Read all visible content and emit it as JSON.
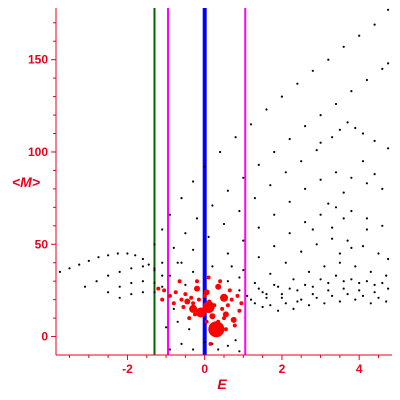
{
  "chart_data": {
    "type": "scatter",
    "title": "",
    "xlabel": "E",
    "ylabel": "<M>",
    "xlim": [
      -3.85,
      4.85
    ],
    "ylim": [
      -10,
      178
    ],
    "x_ticks": [
      -2,
      0,
      2,
      4
    ],
    "y_ticks": [
      0,
      50,
      100,
      150
    ],
    "x_tick_labels": [
      "-2",
      "0",
      "2",
      "4"
    ],
    "y_tick_labels": [
      "0",
      "50",
      "100",
      "150"
    ],
    "grid": false,
    "axis_color": "#e8001c",
    "vertical_lines": [
      {
        "x": -1.3,
        "color": "#006400"
      },
      {
        "x": -0.95,
        "color": "#ff00ff"
      },
      {
        "x": 0.0,
        "color": "#0000ff"
      },
      {
        "x": 1.05,
        "color": "#ff00ff"
      }
    ],
    "series": [
      {
        "color": "#000000",
        "values": [
          [
            -3.75,
            35
          ],
          [
            -3.5,
            37
          ],
          [
            -3.25,
            39
          ],
          [
            -3.0,
            41
          ],
          [
            -2.75,
            43
          ],
          [
            -2.5,
            44
          ],
          [
            -2.25,
            45
          ],
          [
            -2.0,
            45
          ],
          [
            -1.8,
            44
          ],
          [
            -1.6,
            42
          ],
          [
            -1.45,
            39
          ],
          [
            -1.3,
            37
          ],
          [
            -3.1,
            27
          ],
          [
            -2.8,
            30
          ],
          [
            -2.5,
            33
          ],
          [
            -2.2,
            35
          ],
          [
            -1.9,
            37
          ],
          [
            -1.6,
            38
          ],
          [
            -1.3,
            36
          ],
          [
            -1.1,
            33
          ],
          [
            -2.5,
            24
          ],
          [
            -2.2,
            27
          ],
          [
            -1.9,
            29
          ],
          [
            -1.6,
            30
          ],
          [
            -1.3,
            29
          ],
          [
            -1.1,
            27
          ],
          [
            -2.2,
            21
          ],
          [
            -1.9,
            23
          ],
          [
            -1.6,
            24
          ],
          [
            -1.3,
            24
          ],
          [
            -1.3,
            50
          ],
          [
            -1.1,
            58
          ],
          [
            -0.9,
            66
          ],
          [
            -0.6,
            75
          ],
          [
            -0.3,
            84
          ],
          [
            0.0,
            92
          ],
          [
            0.4,
            100
          ],
          [
            0.8,
            108
          ],
          [
            1.2,
            115
          ],
          [
            1.6,
            123
          ],
          [
            2.0,
            130
          ],
          [
            2.4,
            137
          ],
          [
            2.8,
            144
          ],
          [
            3.2,
            150
          ],
          [
            3.6,
            157
          ],
          [
            4.0,
            163
          ],
          [
            4.4,
            169
          ],
          [
            4.75,
            177
          ],
          [
            -1.1,
            40
          ],
          [
            -0.8,
            48
          ],
          [
            -0.5,
            56
          ],
          [
            -0.2,
            64
          ],
          [
            0.2,
            71
          ],
          [
            0.6,
            79
          ],
          [
            1.0,
            86
          ],
          [
            1.4,
            93
          ],
          [
            1.8,
            100
          ],
          [
            2.2,
            107
          ],
          [
            2.6,
            114
          ],
          [
            3.0,
            120
          ],
          [
            3.4,
            126
          ],
          [
            3.8,
            133
          ],
          [
            4.2,
            139
          ],
          [
            4.6,
            145
          ],
          [
            4.75,
            148
          ],
          [
            -0.9,
            33
          ],
          [
            -0.6,
            40
          ],
          [
            -0.3,
            47
          ],
          [
            0.1,
            54
          ],
          [
            0.5,
            61
          ],
          [
            0.9,
            68
          ],
          [
            1.3,
            75
          ],
          [
            1.7,
            82
          ],
          [
            2.1,
            89
          ],
          [
            2.5,
            95
          ],
          [
            2.9,
            101
          ],
          [
            3.3,
            108
          ],
          [
            3.5,
            112
          ],
          [
            3.7,
            116
          ],
          [
            3.9,
            113
          ],
          [
            4.1,
            110
          ],
          [
            4.4,
            106
          ],
          [
            4.75,
            102
          ],
          [
            0.2,
            38
          ],
          [
            0.6,
            45
          ],
          [
            1.0,
            52
          ],
          [
            1.4,
            59
          ],
          [
            1.8,
            66
          ],
          [
            2.2,
            73
          ],
          [
            2.6,
            80
          ],
          [
            3.0,
            85
          ],
          [
            3.4,
            89
          ],
          [
            3.8,
            86
          ],
          [
            4.2,
            83
          ],
          [
            4.6,
            80
          ],
          [
            0.6,
            30
          ],
          [
            1.0,
            36
          ],
          [
            1.4,
            43
          ],
          [
            1.8,
            49
          ],
          [
            2.2,
            56
          ],
          [
            2.6,
            62
          ],
          [
            3.0,
            66
          ],
          [
            3.4,
            70
          ],
          [
            3.8,
            68
          ],
          [
            4.2,
            64
          ],
          [
            4.6,
            60
          ],
          [
            0.9,
            25
          ],
          [
            1.3,
            29
          ],
          [
            1.7,
            34
          ],
          [
            2.1,
            40
          ],
          [
            2.5,
            46
          ],
          [
            2.9,
            50
          ],
          [
            3.3,
            53
          ],
          [
            3.7,
            52
          ],
          [
            4.1,
            49
          ],
          [
            4.5,
            45
          ],
          [
            4.75,
            42
          ],
          [
            1.1,
            22
          ],
          [
            1.5,
            24
          ],
          [
            1.9,
            27
          ],
          [
            2.3,
            31
          ],
          [
            2.7,
            35
          ],
          [
            3.1,
            38
          ],
          [
            3.5,
            40
          ],
          [
            3.9,
            38
          ],
          [
            4.3,
            35
          ],
          [
            4.7,
            33
          ],
          [
            1.2,
            20
          ],
          [
            1.6,
            21
          ],
          [
            2.0,
            23
          ],
          [
            2.4,
            25
          ],
          [
            2.8,
            27
          ],
          [
            3.2,
            29
          ],
          [
            3.6,
            30
          ],
          [
            4.0,
            29
          ],
          [
            4.4,
            28
          ],
          [
            4.75,
            26
          ],
          [
            1.3,
            18
          ],
          [
            1.7,
            17
          ],
          [
            2.1,
            18
          ],
          [
            2.5,
            20
          ],
          [
            2.9,
            21
          ],
          [
            3.3,
            22
          ],
          [
            3.7,
            23
          ],
          [
            4.1,
            22
          ],
          [
            4.5,
            21
          ],
          [
            1.5,
            16
          ],
          [
            1.9,
            14
          ],
          [
            2.3,
            15
          ],
          [
            2.7,
            17
          ],
          [
            3.1,
            18
          ],
          [
            3.5,
            19
          ],
          [
            3.9,
            20
          ],
          [
            4.3,
            18
          ],
          [
            4.7,
            19
          ],
          [
            1.6,
            23
          ],
          [
            2.0,
            21
          ],
          [
            2.4,
            19
          ],
          [
            2.8,
            23
          ],
          [
            3.2,
            25
          ],
          [
            3.6,
            26
          ],
          [
            4.0,
            25
          ],
          [
            4.4,
            24
          ],
          [
            1.4,
            26
          ],
          [
            1.8,
            28
          ],
          [
            2.2,
            26
          ],
          [
            2.6,
            28
          ],
          [
            3.0,
            31
          ],
          [
            3.4,
            33
          ],
          [
            3.8,
            31
          ],
          [
            4.2,
            30
          ],
          [
            4.6,
            29
          ],
          [
            3.3,
            59
          ],
          [
            3.6,
            64
          ],
          [
            3.5,
            45
          ],
          [
            3.8,
            48
          ],
          [
            4.2,
            58
          ],
          [
            2.8,
            58
          ],
          [
            3.2,
            72
          ],
          [
            4.1,
            95
          ],
          [
            4.4,
            88
          ],
          [
            3.6,
            78
          ],
          [
            3.0,
            105
          ],
          [
            -0.6,
            -4
          ],
          [
            -0.3,
            -7
          ],
          [
            0.0,
            -3
          ],
          [
            0.35,
            -7
          ],
          [
            0.6,
            -5
          ],
          [
            0.9,
            -8
          ],
          [
            -0.9,
            -7
          ],
          [
            0.2,
            -4
          ],
          [
            0.8,
            -2
          ],
          [
            -1.0,
            5
          ],
          [
            -0.7,
            8
          ],
          [
            -0.4,
            4
          ],
          [
            -0.8,
            15
          ],
          [
            -0.5,
            28
          ],
          [
            -0.3,
            35
          ],
          [
            -0.7,
            40
          ],
          [
            0.7,
            38
          ],
          [
            0.9,
            32
          ]
        ]
      },
      {
        "color": "#ff0000",
        "values": [
          [
            0.3,
            4,
            8
          ],
          [
            0.1,
            16,
            6
          ],
          [
            -0.1,
            13,
            5
          ],
          [
            -0.3,
            15,
            4
          ],
          [
            0.5,
            21,
            4
          ],
          [
            0.05,
            24,
            3
          ],
          [
            0.75,
            9,
            3
          ],
          [
            0.55,
            12,
            3
          ],
          [
            -0.45,
            19,
            3
          ],
          [
            -0.2,
            26,
            3
          ],
          [
            0.35,
            27,
            3
          ],
          [
            0.2,
            11,
            3
          ],
          [
            -1.05,
            25,
            2
          ],
          [
            -0.9,
            22,
            2
          ],
          [
            -0.75,
            24,
            2
          ],
          [
            -0.6,
            20,
            2
          ],
          [
            -0.5,
            23,
            2
          ],
          [
            -0.35,
            21,
            2
          ],
          [
            -0.3,
            18,
            2
          ],
          [
            -0.15,
            20,
            2
          ],
          [
            0.0,
            22,
            2
          ],
          [
            0.12,
            19,
            2
          ],
          [
            0.25,
            17,
            2
          ],
          [
            0.45,
            15,
            2
          ],
          [
            0.6,
            17,
            2
          ],
          [
            0.7,
            20,
            2
          ],
          [
            0.85,
            22,
            2
          ],
          [
            0.95,
            18,
            2
          ],
          [
            0.65,
            25,
            2
          ],
          [
            0.5,
            10,
            2
          ],
          [
            0.35,
            8,
            2
          ],
          [
            -0.55,
            16,
            2
          ],
          [
            -0.8,
            18,
            2
          ],
          [
            -0.2,
            30,
            2
          ],
          [
            0.1,
            32,
            2
          ],
          [
            0.4,
            30,
            2
          ],
          [
            -0.65,
            30,
            2
          ],
          [
            0.9,
            14,
            2
          ],
          [
            0.78,
            6,
            2
          ],
          [
            0.2,
            2,
            2
          ],
          [
            -0.4,
            10,
            2
          ],
          [
            0.05,
            8,
            2
          ],
          [
            -1.2,
            26,
            2
          ],
          [
            -1.1,
            20,
            2
          ],
          [
            0.15,
            -4,
            2
          ],
          [
            0.55,
            4,
            2
          ],
          [
            -0.25,
            12,
            2
          ]
        ]
      }
    ]
  }
}
